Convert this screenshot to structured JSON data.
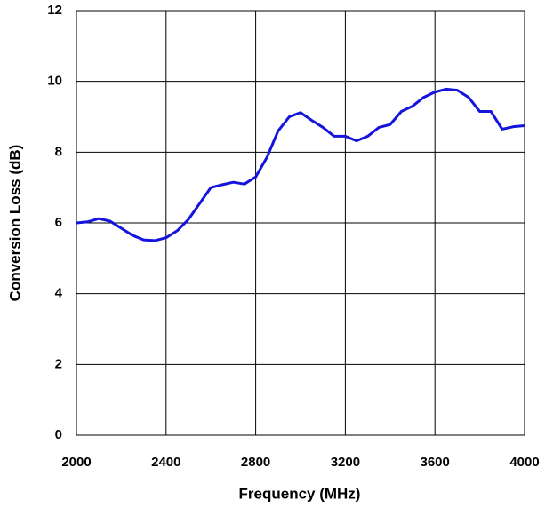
{
  "chart_data": {
    "type": "line",
    "xlabel": "Frequency (MHz)",
    "ylabel": "Conversion Loss (dB)",
    "x": [
      2000,
      2050,
      2100,
      2150,
      2200,
      2250,
      2300,
      2350,
      2400,
      2450,
      2500,
      2550,
      2600,
      2650,
      2700,
      2750,
      2800,
      2850,
      2900,
      2950,
      3000,
      3050,
      3100,
      3150,
      3200,
      3250,
      3300,
      3350,
      3400,
      3450,
      3500,
      3550,
      3600,
      3650,
      3700,
      3750,
      3800,
      3850,
      3900,
      3950,
      4000
    ],
    "series": [
      {
        "color": "#1414dc",
        "values": [
          6.0,
          6.03,
          6.12,
          6.05,
          5.85,
          5.65,
          5.52,
          5.5,
          5.58,
          5.78,
          6.1,
          6.55,
          7.0,
          7.08,
          7.15,
          7.1,
          7.3,
          7.85,
          8.6,
          9.0,
          9.12,
          8.9,
          8.7,
          8.45,
          8.45,
          8.32,
          8.45,
          8.7,
          8.78,
          9.15,
          9.3,
          9.55,
          9.7,
          9.78,
          9.75,
          9.55,
          9.15,
          9.15,
          8.65,
          8.72,
          8.75
        ]
      }
    ],
    "xlim": [
      2000,
      4000
    ],
    "xticks": [
      2000,
      2400,
      2800,
      3200,
      3600,
      4000
    ],
    "ylim": [
      0,
      12
    ],
    "yticks": [
      0,
      2,
      4,
      6,
      8,
      10,
      12
    ],
    "grid": true
  }
}
